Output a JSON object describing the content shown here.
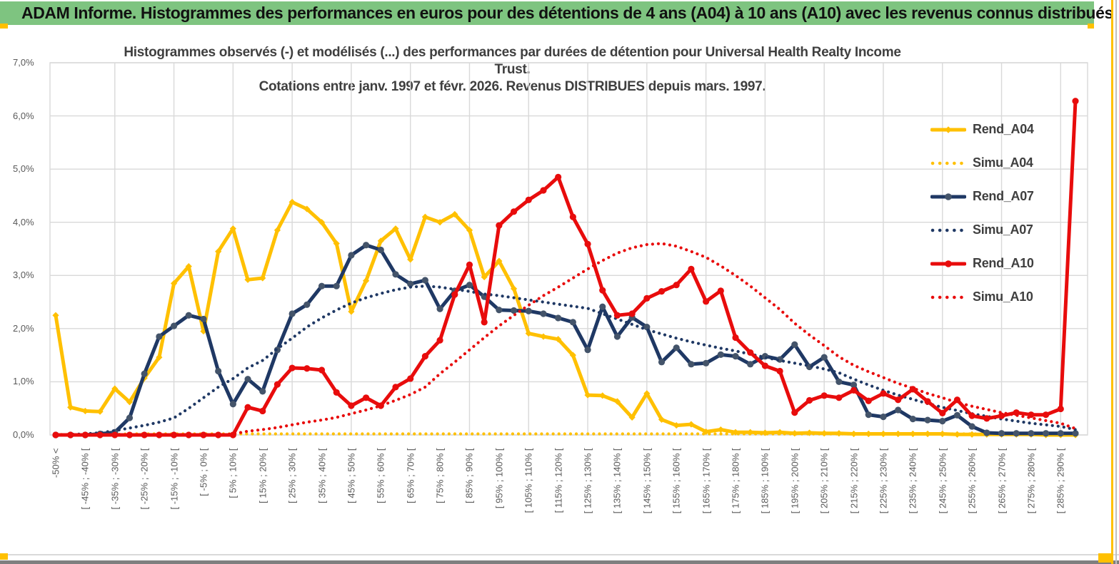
{
  "header": {
    "title": "ADAM Informe. Histogrammes des performances en euros pour des détentions de 4 ans (A04) à 10 ans (A10) avec les revenus connus distribués",
    "bg_color": "#7ec480"
  },
  "chart_data": {
    "type": "line",
    "title_line1": "Histogrammes observés (-) et modélisés (...) des performances par durées de détention pour Universal Health Realty Income Trust.",
    "title_line2": "Cotations entre janv. 1997 et févr. 2026. Revenus DISTRIBUES depuis mars. 1997.",
    "ylim": [
      0,
      7
    ],
    "y_tick_labels": [
      "0,0%",
      "1,0%",
      "2,0%",
      "3,0%",
      "4,0%",
      "5,0%",
      "6,0%",
      "7,0%"
    ],
    "grid": true,
    "legend_position": "right",
    "x_tick_every": 2,
    "n_bins": 70,
    "x_tick_labels": [
      "-50% <",
      "[ -45% ; -40% [",
      "[ -35% ; -30% [",
      "[ -25% ; -20% [",
      "[ -15% ; -10% [",
      "[ -5% ; 0% [",
      "[ 5% ; 10% [",
      "[ 15% ; 20% [",
      "[ 25% ; 30% [",
      "[ 35% ; 40% [",
      "[ 45% ; 50% [",
      "[ 55% ; 60% [",
      "[ 65% ; 70% [",
      "[ 75% ; 80% [",
      "[ 85% ; 90% [",
      "[ 95% ; 100% [",
      "[ 105% ; 110% [",
      "[ 115% ; 120% [",
      "[ 125% ; 130% [",
      "[ 135% ; 140% [",
      "[ 145% ; 150% [",
      "[ 155% ; 160% [",
      "[ 165% ; 170% [",
      "[ 175% ; 180% [",
      "[ 185% ; 190% [",
      "[ 195% ; 200% [",
      "[ 205% ; 210% [",
      "[ 215% ; 220% [",
      "[ 225% ; 230% [",
      "[ 235% ; 240% [",
      "[ 245% ; 250% [",
      "[ 255% ; 260% [",
      "[ 265% ; 270% [",
      "[ 275% ; 280% [",
      "[ 285% ; 290% ["
    ],
    "series": [
      {
        "name": "Rend_A04",
        "color": "#ffc000",
        "style": "solid",
        "marker": "diamond",
        "values": [
          2.25,
          0.52,
          0.45,
          0.44,
          0.87,
          0.62,
          1.07,
          1.46,
          2.85,
          3.17,
          1.95,
          3.45,
          3.88,
          2.92,
          2.95,
          3.85,
          4.38,
          4.25,
          4.0,
          3.6,
          2.32,
          2.9,
          3.65,
          3.88,
          3.3,
          4.1,
          4.0,
          4.15,
          3.85,
          2.97,
          3.27,
          2.75,
          1.91,
          1.85,
          1.8,
          1.5,
          0.75,
          0.74,
          0.63,
          0.33,
          0.78,
          0.29,
          0.18,
          0.2,
          0.06,
          0.1,
          0.05,
          0.05,
          0.04,
          0.05,
          0.03,
          0.04,
          0.03,
          0.03,
          0.02,
          0.02,
          0.02,
          0.02,
          0.02,
          0.02,
          0.02,
          0.01,
          0.01,
          0.01,
          0.01,
          0.01,
          0.01,
          0.0,
          0.0,
          0.0
        ]
      },
      {
        "name": "Simu_A04",
        "color": "#ffc000",
        "style": "dotted",
        "marker": "none",
        "values": [
          0.01,
          0.01,
          0.01,
          0.01,
          0.01,
          0.02,
          0.02,
          0.02,
          0.02,
          0.02,
          0.02,
          0.02,
          0.02,
          0.02,
          0.02,
          0.02,
          0.02,
          0.02,
          0.02,
          0.02,
          0.02,
          0.02,
          0.02,
          0.02,
          0.02,
          0.02,
          0.02,
          0.02,
          0.02,
          0.02,
          0.02,
          0.02,
          0.02,
          0.02,
          0.02,
          0.02,
          0.02,
          0.02,
          0.02,
          0.02,
          0.02,
          0.02,
          0.02,
          0.02,
          0.02,
          0.02,
          0.02,
          0.02,
          0.02,
          0.02,
          0.02,
          0.02,
          0.02,
          0.02,
          0.02,
          0.02,
          0.02,
          0.02,
          0.02,
          0.02,
          0.02,
          0.02,
          0.02,
          0.02,
          0.02,
          0.02,
          0.02,
          0.02,
          0.02,
          0.02
        ]
      },
      {
        "name": "Rend_A07",
        "color": "#1f3864",
        "style": "solid",
        "marker": "circle",
        "values": [
          0.0,
          0.0,
          0.0,
          0.02,
          0.05,
          0.32,
          1.15,
          1.85,
          2.05,
          2.25,
          2.18,
          1.2,
          0.58,
          1.05,
          0.82,
          1.6,
          2.28,
          2.45,
          2.8,
          2.8,
          3.38,
          3.57,
          3.48,
          3.02,
          2.84,
          2.91,
          2.37,
          2.71,
          2.82,
          2.6,
          2.35,
          2.34,
          2.33,
          2.28,
          2.2,
          2.12,
          1.6,
          2.41,
          1.85,
          2.21,
          2.03,
          1.37,
          1.64,
          1.33,
          1.35,
          1.51,
          1.48,
          1.33,
          1.48,
          1.42,
          1.7,
          1.28,
          1.46,
          1.0,
          0.94,
          0.38,
          0.34,
          0.47,
          0.3,
          0.28,
          0.26,
          0.37,
          0.16,
          0.04,
          0.03,
          0.03,
          0.03,
          0.03,
          0.03,
          0.03
        ]
      },
      {
        "name": "Simu_A07",
        "color": "#1f3864",
        "style": "dotted",
        "marker": "none",
        "values": [
          0.0,
          0.01,
          0.02,
          0.04,
          0.08,
          0.13,
          0.18,
          0.24,
          0.32,
          0.5,
          0.7,
          0.9,
          1.06,
          1.26,
          1.4,
          1.62,
          1.82,
          2.03,
          2.2,
          2.35,
          2.48,
          2.58,
          2.66,
          2.73,
          2.78,
          2.8,
          2.78,
          2.74,
          2.7,
          2.65,
          2.62,
          2.58,
          2.54,
          2.5,
          2.46,
          2.42,
          2.38,
          2.28,
          2.18,
          2.08,
          1.98,
          1.9,
          1.82,
          1.75,
          1.69,
          1.63,
          1.58,
          1.52,
          1.46,
          1.4,
          1.35,
          1.3,
          1.24,
          1.17,
          1.05,
          0.94,
          0.84,
          0.75,
          0.67,
          0.59,
          0.52,
          0.46,
          0.4,
          0.35,
          0.3,
          0.26,
          0.22,
          0.19,
          0.16,
          0.1
        ]
      },
      {
        "name": "Rend_A10",
        "color": "#e80c0c",
        "style": "solid",
        "marker": "circle",
        "values": [
          0.0,
          0.0,
          0.0,
          0.0,
          0.0,
          0.0,
          0.0,
          0.0,
          0.0,
          0.0,
          0.0,
          0.0,
          0.0,
          0.52,
          0.45,
          0.95,
          1.26,
          1.25,
          1.22,
          0.8,
          0.55,
          0.7,
          0.55,
          0.9,
          1.06,
          1.48,
          1.78,
          2.64,
          3.2,
          2.12,
          3.94,
          4.2,
          4.42,
          4.6,
          4.85,
          4.1,
          3.59,
          2.72,
          2.25,
          2.28,
          2.57,
          2.7,
          2.82,
          3.12,
          2.51,
          2.71,
          1.83,
          1.55,
          1.3,
          1.2,
          0.42,
          0.65,
          0.74,
          0.7,
          0.84,
          0.64,
          0.78,
          0.66,
          0.86,
          0.63,
          0.41,
          0.66,
          0.36,
          0.31,
          0.36,
          0.42,
          0.38,
          0.38,
          0.49,
          6.28
        ]
      },
      {
        "name": "Simu_A10",
        "color": "#e80c0c",
        "style": "dotted",
        "marker": "none",
        "values": [
          0.0,
          0.0,
          0.0,
          0.0,
          0.0,
          0.0,
          0.0,
          0.0,
          0.0,
          0.0,
          0.0,
          0.0,
          0.02,
          0.07,
          0.1,
          0.14,
          0.19,
          0.24,
          0.28,
          0.33,
          0.4,
          0.47,
          0.55,
          0.65,
          0.76,
          0.9,
          1.15,
          1.37,
          1.6,
          1.83,
          2.05,
          2.25,
          2.44,
          2.62,
          2.78,
          2.95,
          3.12,
          3.28,
          3.42,
          3.52,
          3.58,
          3.6,
          3.55,
          3.45,
          3.34,
          3.18,
          3.0,
          2.8,
          2.58,
          2.36,
          2.1,
          1.88,
          1.68,
          1.47,
          1.31,
          1.19,
          1.08,
          0.97,
          0.88,
          0.78,
          0.7,
          0.61,
          0.54,
          0.48,
          0.42,
          0.37,
          0.32,
          0.27,
          0.22,
          0.12
        ]
      }
    ]
  },
  "chrome": {
    "grid_color": "#d9d9d9",
    "axis_text_color": "#595959",
    "accent_gold": "#ffc000"
  }
}
